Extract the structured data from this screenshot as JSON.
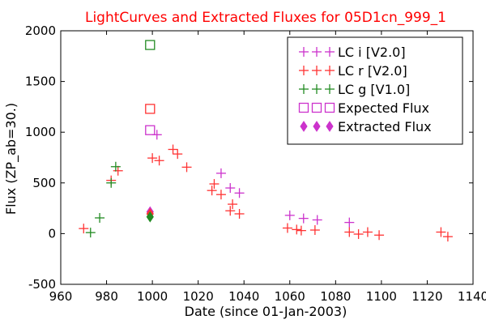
{
  "chart_data": {
    "type": "scatter",
    "title": "LightCurves and Extracted Fluxes for 05D1cn_999_1",
    "xlabel": "Date (since 01-Jan-2003)",
    "ylabel": "Flux (ZP_ab=30.)",
    "xlim": [
      960,
      1140
    ],
    "ylim": [
      -500,
      2000
    ],
    "xticks": [
      960,
      980,
      1000,
      1020,
      1040,
      1060,
      1080,
      1100,
      1120,
      1140
    ],
    "yticks": [
      -500,
      0,
      500,
      1000,
      1500,
      2000
    ],
    "grid": false,
    "legend_position": "top-right",
    "series": [
      {
        "name": "LC i [V2.0]",
        "marker": "plus",
        "color": "#cc33cc",
        "points": [
          [
            1002,
            975
          ],
          [
            1030,
            595
          ],
          [
            1034,
            450
          ],
          [
            1038,
            400
          ],
          [
            1060,
            180
          ],
          [
            1066,
            150
          ],
          [
            1072,
            135
          ],
          [
            1086,
            110
          ]
        ]
      },
      {
        "name": "LC r [V2.0]",
        "marker": "plus",
        "color": "#ff3333",
        "points": [
          [
            970,
            50
          ],
          [
            982,
            525
          ],
          [
            985,
            620
          ],
          [
            1000,
            745
          ],
          [
            1003,
            720
          ],
          [
            1009,
            830
          ],
          [
            1011,
            785
          ],
          [
            1015,
            655
          ],
          [
            1026,
            425
          ],
          [
            1027,
            490
          ],
          [
            1030,
            385
          ],
          [
            1034,
            225
          ],
          [
            1035,
            290
          ],
          [
            1038,
            195
          ],
          [
            1059,
            55
          ],
          [
            1063,
            40
          ],
          [
            1065,
            30
          ],
          [
            1071,
            35
          ],
          [
            1086,
            15
          ],
          [
            1090,
            -5
          ],
          [
            1094,
            15
          ],
          [
            1099,
            -15
          ],
          [
            1126,
            15
          ],
          [
            1129,
            -30
          ]
        ]
      },
      {
        "name": "LC g [V1.0]",
        "marker": "plus",
        "color": "#228b22",
        "points": [
          [
            973,
            10
          ],
          [
            977,
            155
          ],
          [
            982,
            500
          ],
          [
            984,
            660
          ]
        ]
      },
      {
        "name": "Expected Flux",
        "marker": "square",
        "colors_by_point": [
          "#cc33cc",
          "#ff3333",
          "#228b22"
        ],
        "points": [
          [
            999,
            1020
          ],
          [
            999,
            1230
          ],
          [
            999,
            1860
          ]
        ]
      },
      {
        "name": "Extracted Flux",
        "marker": "diamond",
        "colors_by_point": [
          "#cc33cc",
          "#ff3333",
          "#228b22"
        ],
        "points": [
          [
            999,
            215
          ],
          [
            999,
            195
          ],
          [
            999,
            165
          ]
        ]
      }
    ]
  }
}
